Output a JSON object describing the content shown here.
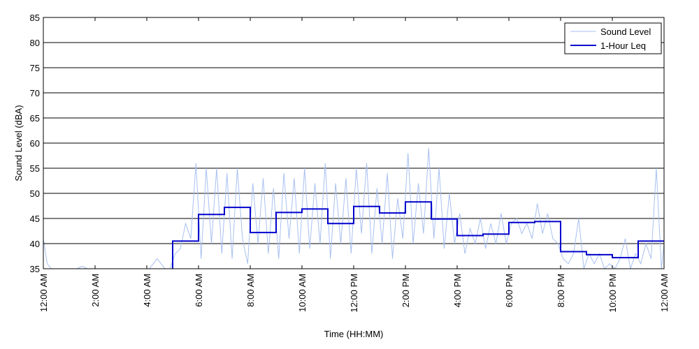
{
  "chart_data": {
    "type": "line",
    "title": "",
    "xlabel": "Time (HH:MM)",
    "ylabel": "Sound Level (dBA)",
    "xlim": [
      0,
      24
    ],
    "ylim": [
      35,
      85
    ],
    "grid": "horizontal",
    "legend_position": "top-right",
    "y_ticks": [
      35,
      40,
      45,
      50,
      55,
      60,
      65,
      70,
      75,
      80,
      85
    ],
    "x_ticks": [
      {
        "x": 0,
        "label": "12:00 AM"
      },
      {
        "x": 2,
        "label": "2:00 AM"
      },
      {
        "x": 4,
        "label": "4:00 AM"
      },
      {
        "x": 6,
        "label": "6:00 AM"
      },
      {
        "x": 8,
        "label": "8:00 AM"
      },
      {
        "x": 10,
        "label": "10:00 AM"
      },
      {
        "x": 12,
        "label": "12:00 PM"
      },
      {
        "x": 14,
        "label": "2:00 PM"
      },
      {
        "x": 16,
        "label": "4:00 PM"
      },
      {
        "x": 18,
        "label": "6:00 PM"
      },
      {
        "x": 20,
        "label": "8:00 PM"
      },
      {
        "x": 22,
        "label": "10:00 PM"
      },
      {
        "x": 24,
        "label": "12:00 AM"
      }
    ],
    "series": [
      {
        "name": "Sound Level",
        "color": "#a8c0f0",
        "style": "thin-line",
        "x": [
          0.0,
          0.15,
          0.3,
          0.6,
          1.0,
          1.3,
          1.5,
          1.7,
          2.0,
          2.5,
          3.0,
          3.5,
          3.9,
          4.1,
          4.4,
          4.7,
          4.9,
          5.1,
          5.3,
          5.5,
          5.7,
          5.9,
          6.1,
          6.3,
          6.5,
          6.7,
          6.9,
          7.1,
          7.3,
          7.5,
          7.7,
          7.9,
          8.1,
          8.3,
          8.5,
          8.7,
          8.9,
          9.1,
          9.3,
          9.5,
          9.7,
          9.9,
          10.1,
          10.3,
          10.5,
          10.7,
          10.9,
          11.1,
          11.3,
          11.5,
          11.7,
          11.9,
          12.1,
          12.3,
          12.5,
          12.7,
          12.9,
          13.1,
          13.3,
          13.5,
          13.7,
          13.9,
          14.1,
          14.3,
          14.5,
          14.7,
          14.9,
          15.1,
          15.3,
          15.5,
          15.7,
          15.9,
          16.1,
          16.3,
          16.5,
          16.7,
          16.9,
          17.1,
          17.3,
          17.5,
          17.7,
          17.9,
          18.1,
          18.3,
          18.5,
          18.7,
          18.9,
          19.1,
          19.3,
          19.5,
          19.7,
          19.9,
          20.1,
          20.3,
          20.5,
          20.7,
          20.9,
          21.1,
          21.3,
          21.5,
          21.7,
          21.9,
          22.1,
          22.3,
          22.5,
          22.7,
          22.9,
          23.1,
          23.3,
          23.5,
          23.7,
          23.9,
          24.0
        ],
        "values": [
          41,
          36,
          35,
          35,
          35,
          35,
          35.5,
          35,
          35,
          35,
          35,
          35,
          35,
          35,
          37,
          35,
          35,
          38,
          39,
          44,
          41,
          56,
          37,
          55,
          40,
          55,
          38,
          54,
          37,
          55,
          41,
          36,
          52,
          40,
          53,
          38,
          51,
          37,
          54,
          41,
          53,
          38,
          55,
          39,
          52,
          40,
          56,
          37,
          52,
          40,
          53,
          38,
          55,
          42,
          56,
          38,
          51,
          40,
          54,
          37,
          49,
          41,
          58,
          40,
          52,
          42,
          59,
          41,
          55,
          39,
          50,
          40,
          46,
          38,
          43,
          40,
          45,
          39,
          44,
          40,
          46,
          40,
          44,
          45,
          42,
          44,
          41,
          48,
          42,
          46,
          41,
          40,
          37,
          36,
          38,
          45,
          35,
          38,
          36,
          38,
          35,
          36,
          35,
          37,
          41,
          35,
          38,
          36,
          40,
          37,
          55,
          35,
          40
        ]
      },
      {
        "name": "1-Hour Leq",
        "color": "#0000cc",
        "style": "step",
        "x": [
          0,
          1,
          2,
          3,
          4,
          5,
          6,
          7,
          8,
          9,
          10,
          11,
          12,
          13,
          14,
          15,
          16,
          17,
          18,
          19,
          20,
          21,
          22,
          23,
          24
        ],
        "values": [
          null,
          null,
          null,
          null,
          null,
          40.5,
          45.8,
          47.2,
          42.2,
          46.2,
          46.9,
          44.0,
          47.4,
          46.1,
          48.3,
          44.9,
          41.6,
          41.9,
          44.2,
          44.4,
          38.4,
          37.8,
          37.2,
          40.5,
          40.5
        ]
      }
    ]
  }
}
